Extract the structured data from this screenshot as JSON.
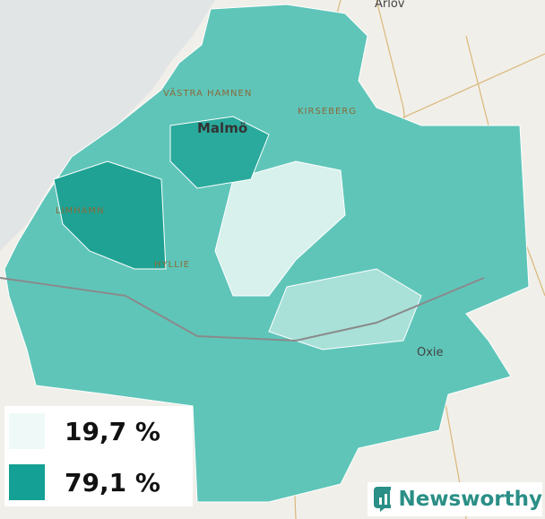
{
  "places": {
    "arlov": "Arlöv",
    "vastra_hamnen": "VÄSTRA HAMNEN",
    "malmo": "Malmö",
    "kirseberg": "KIRSEBERG",
    "limhamn": "LIMHAMN",
    "hyllie": "HYLLIE",
    "oxie": "Oxie"
  },
  "legend": [
    {
      "label": "19,7 %",
      "color": "#effaf8"
    },
    {
      "label": "79,1 %",
      "color": "#14a094"
    }
  ],
  "brand": "Newsworthy"
}
